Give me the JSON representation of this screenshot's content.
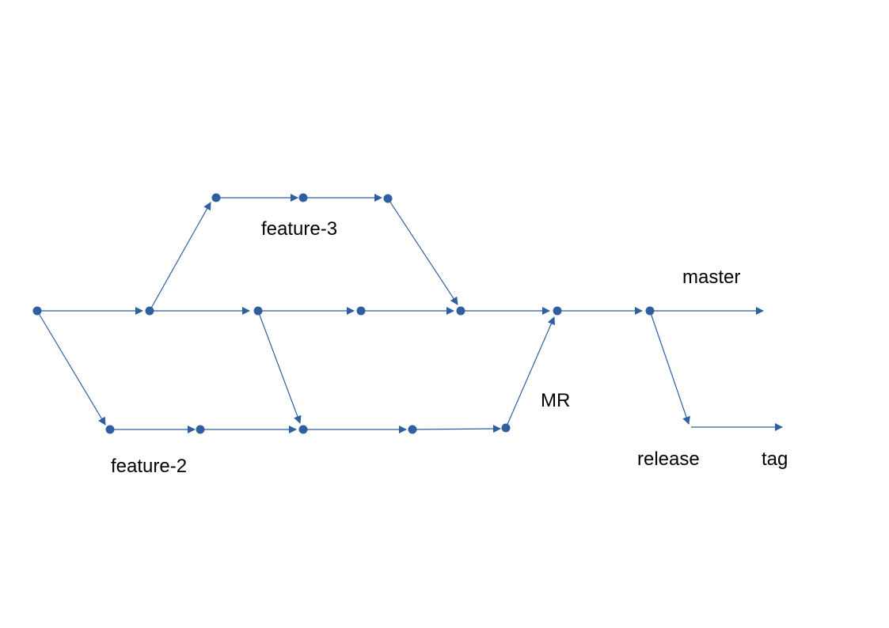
{
  "diagram": {
    "labels": {
      "feature_3": "feature-3",
      "master": "master",
      "mr": "MR",
      "feature_2": "feature-2",
      "release": "release",
      "tag": "tag"
    },
    "colors": {
      "line": "#2e5f9f",
      "node": "#2e5f9f",
      "text": "#000000"
    }
  }
}
